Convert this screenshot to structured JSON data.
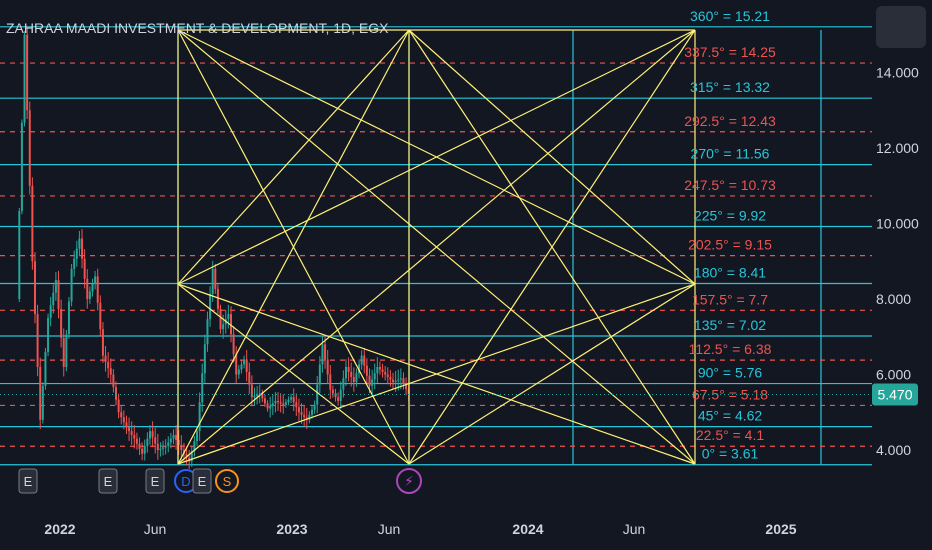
{
  "chart_data": {
    "type": "candlestick",
    "title": "ZAHRAA MAADI INVESTMENT & DEVELOPMENT, 1D, EGX",
    "ylim": [
      3.4,
      15.8
    ],
    "y_ticks": [
      "4.000",
      "6.000",
      "8.000",
      "10.000",
      "12.000",
      "14.000"
    ],
    "x_ticks": [
      "2022",
      "Jun",
      "2023",
      "Jun",
      "2024",
      "Jun",
      "2025"
    ],
    "last_price": "5.470",
    "gann_levels": [
      {
        "label": "360° = 15.21",
        "value": 15.21,
        "style": "solid"
      },
      {
        "label": "337.5° = 14.25",
        "value": 14.25,
        "style": "dashed"
      },
      {
        "label": "315° = 13.32",
        "value": 13.32,
        "style": "solid"
      },
      {
        "label": "292.5° = 12.43",
        "value": 12.43,
        "style": "dashed"
      },
      {
        "label": "270° = 11.56",
        "value": 11.56,
        "style": "solid"
      },
      {
        "label": "247.5° = 10.73",
        "value": 10.73,
        "style": "dashed"
      },
      {
        "label": "225° = 9.92",
        "value": 9.92,
        "style": "solid"
      },
      {
        "label": "202.5° = 9.15",
        "value": 9.15,
        "style": "dashed"
      },
      {
        "label": "180° = 8.41",
        "value": 8.41,
        "style": "solid"
      },
      {
        "label": "157.5° = 7.7",
        "value": 7.7,
        "style": "dashed"
      },
      {
        "label": "135° = 7.02",
        "value": 7.02,
        "style": "solid"
      },
      {
        "label": "112.5° = 6.38",
        "value": 6.38,
        "style": "dashed"
      },
      {
        "label": "90° = 5.76",
        "value": 5.76,
        "style": "solid"
      },
      {
        "label": "67.5° = 5.18",
        "value": 5.18,
        "style": "dashed"
      },
      {
        "label": "45° = 4.62",
        "value": 4.62,
        "style": "solid"
      },
      {
        "label": "22.5° = 4.1",
        "value": 4.1,
        "style": "dashed"
      },
      {
        "label": "0° = 3.61",
        "value": 3.61,
        "style": "solid"
      }
    ],
    "event_markers": [
      "E",
      "E",
      "E",
      "D",
      "E",
      "S",
      "⚡"
    ],
    "price_path": [
      [
        0.0,
        8.0
      ],
      [
        0.02,
        15.0
      ],
      [
        0.04,
        9.0
      ],
      [
        0.06,
        4.8
      ],
      [
        0.08,
        7.5
      ],
      [
        0.1,
        8.5
      ],
      [
        0.12,
        6.2
      ],
      [
        0.14,
        8.8
      ],
      [
        0.16,
        9.6
      ],
      [
        0.18,
        8.0
      ],
      [
        0.2,
        8.6
      ],
      [
        0.22,
        6.5
      ],
      [
        0.24,
        6.0
      ],
      [
        0.26,
        5.0
      ],
      [
        0.28,
        4.6
      ],
      [
        0.3,
        4.3
      ],
      [
        0.32,
        3.9
      ],
      [
        0.34,
        4.5
      ],
      [
        0.36,
        4.0
      ],
      [
        0.38,
        4.1
      ],
      [
        0.4,
        4.4
      ],
      [
        0.42,
        4.0
      ],
      [
        0.44,
        3.7
      ],
      [
        0.46,
        4.5
      ],
      [
        0.48,
        6.8
      ],
      [
        0.5,
        8.8
      ],
      [
        0.52,
        7.2
      ],
      [
        0.54,
        7.6
      ],
      [
        0.56,
        6.0
      ],
      [
        0.58,
        6.4
      ],
      [
        0.6,
        5.4
      ],
      [
        0.62,
        5.5
      ],
      [
        0.64,
        5.1
      ],
      [
        0.66,
        5.3
      ],
      [
        0.68,
        5.2
      ],
      [
        0.7,
        5.4
      ],
      [
        0.72,
        5.0
      ],
      [
        0.74,
        4.8
      ],
      [
        0.76,
        5.2
      ],
      [
        0.78,
        6.8
      ],
      [
        0.8,
        5.6
      ],
      [
        0.82,
        5.3
      ],
      [
        0.84,
        6.2
      ],
      [
        0.86,
        5.8
      ],
      [
        0.88,
        6.5
      ],
      [
        0.9,
        5.7
      ],
      [
        0.92,
        6.2
      ],
      [
        0.94,
        6.0
      ],
      [
        0.96,
        5.8
      ],
      [
        0.98,
        5.9
      ],
      [
        1.0,
        5.47
      ]
    ]
  },
  "colors": {
    "background": "#131722",
    "axis_text": "#d1d4dc",
    "cyan": "#26c6da",
    "red": "#ef5350",
    "gann_lines": "#fff176",
    "up_candle": "#26a69a",
    "down_candle": "#ef5350",
    "price_tag": "#26a69a",
    "marker_blue": "#2962ff",
    "marker_orange": "#f7931a",
    "marker_purple": "#ab47bc",
    "grid": "#2a2e39"
  }
}
